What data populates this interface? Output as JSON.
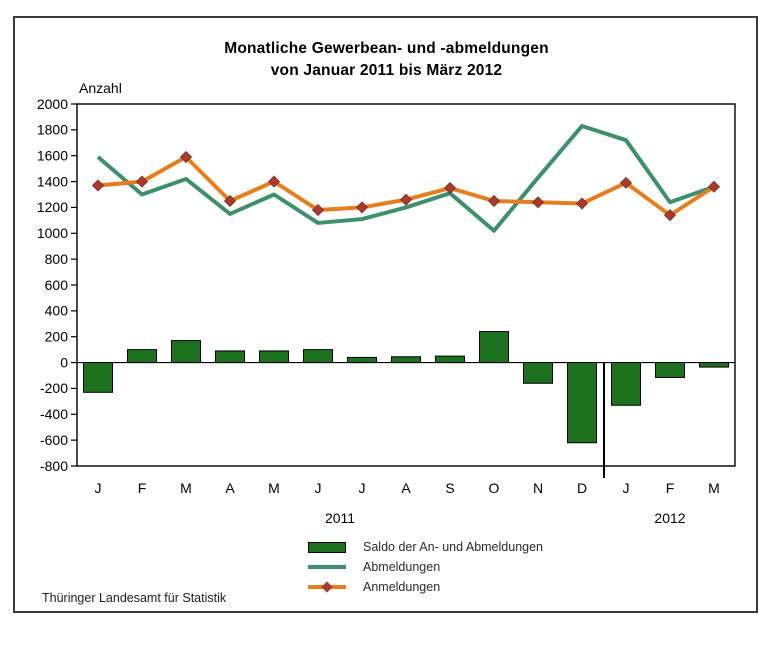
{
  "title": {
    "line1": "Monatliche Gewerbean- und -abmeldungen",
    "line2": "von Januar 2011 bis März 2012"
  },
  "y_axis_unit": "Anzahl",
  "footer": "Thüringer Landesamt für Statistik",
  "colors": {
    "saldo_bar": "#1d701d",
    "bar_border": "#000000",
    "abmeldungen_line": "#3e8f6b",
    "anmeldungen_line": "#e67d1e",
    "anmeldungen_marker": "#a53c2f",
    "axis": "#000000"
  },
  "chart_data": {
    "type": "combo",
    "subtypes": [
      "bar",
      "line",
      "line"
    ],
    "title": "Monatliche Gewerbean- und -abmeldungen von Januar 2011 bis März 2012",
    "xlabel": "",
    "ylabel": "Anzahl",
    "ylim": [
      -800,
      2000
    ],
    "y_tick_step": 200,
    "grid": false,
    "legend_position": "bottom",
    "categories": [
      "J",
      "F",
      "M",
      "A",
      "M",
      "J",
      "J",
      "A",
      "S",
      "O",
      "N",
      "D",
      "J",
      "F",
      "M"
    ],
    "category_years": [
      {
        "label": "2011",
        "from": 0,
        "to": 11
      },
      {
        "label": "2012",
        "from": 12,
        "to": 14
      }
    ],
    "series": [
      {
        "name": "Saldo der An- und Abmeldungen",
        "type": "bar",
        "color": "#1d701d",
        "values": [
          -230,
          100,
          170,
          90,
          90,
          100,
          40,
          45,
          50,
          240,
          -160,
          -620,
          -330,
          -115,
          -35
        ]
      },
      {
        "name": "Abmeldungen",
        "type": "line",
        "color": "#3e8f6b",
        "values": [
          1590,
          1300,
          1420,
          1150,
          1300,
          1080,
          1110,
          1200,
          1310,
          1020,
          1430,
          1830,
          1720,
          1240,
          1360
        ]
      },
      {
        "name": "Anmeldungen",
        "type": "line",
        "marker": "diamond",
        "color": "#e67d1e",
        "marker_color": "#a53c2f",
        "values": [
          1370,
          1400,
          1590,
          1250,
          1400,
          1180,
          1200,
          1260,
          1350,
          1250,
          1240,
          1230,
          1390,
          1140,
          1360
        ]
      }
    ]
  }
}
